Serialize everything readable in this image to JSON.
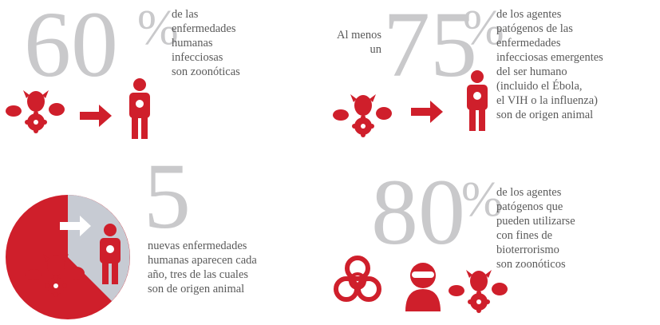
{
  "panels": [
    {
      "number": "60",
      "unit": "%",
      "description": [
        "de las",
        "enfermedades",
        "humanas",
        "infecciosas",
        "son zoonóticas"
      ]
    },
    {
      "prefix": [
        "Al menos",
        "un"
      ],
      "number": "75",
      "unit": "%",
      "description": [
        "de los agentes",
        "patógenos de las",
        "enfermedades",
        "infecciosas emergentes",
        "del ser humano",
        "(incluido el Ébola,",
        "el VIH o la influenza)",
        "son de origen animal"
      ]
    },
    {
      "number": "5",
      "description": [
        "nuevas enfermedades",
        "humanas aparecen cada",
        "año, tres de las cuales",
        "son de origen animal"
      ]
    },
    {
      "number": "80",
      "unit": "%",
      "description": [
        "de los agentes",
        "patógenos que",
        "pueden utilizarse",
        "con fines de",
        "bioterrorismo",
        "son zoonóticos"
      ]
    }
  ]
}
